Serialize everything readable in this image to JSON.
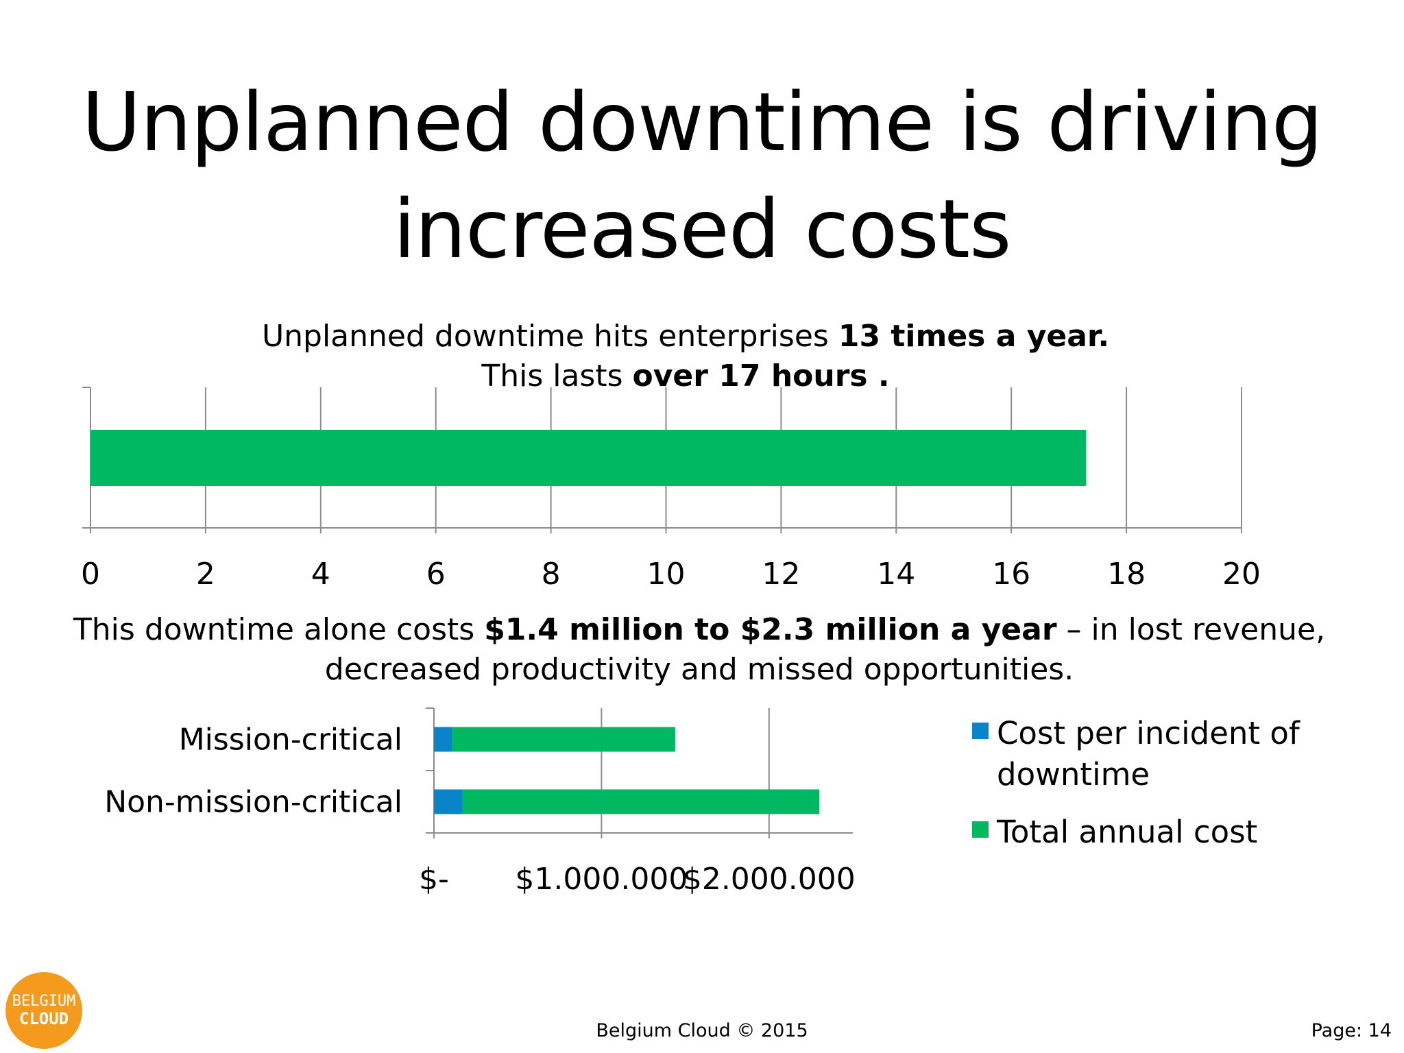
{
  "title": {
    "line1": "Unplanned downtime is driving",
    "line2": "increased costs"
  },
  "caption1": {
    "line1_plain": "Unplanned downtime hits enterprises ",
    "line1_bold": "13 times a year.",
    "line2_plain": "This lasts ",
    "line2_bold": "over 17 hours ."
  },
  "caption2": {
    "plain1": "This downtime alone costs ",
    "bold": "$1.4 million to $2.3 million a year",
    "plain2": " – in lost revenue, decreased productivity and missed opportunities."
  },
  "legend": {
    "item1": "Cost per incident of downtime",
    "item2": "Total annual cost"
  },
  "colors": {
    "green": "#00b862",
    "blue": "#0a84c9",
    "grid": "#8c8c8c",
    "logo": "#f49a1c"
  },
  "logo": {
    "line1": "BELGIUM",
    "line2": "CLOUD"
  },
  "footer": {
    "copyright": "Belgium Cloud © 2015",
    "page": "Page: 14"
  },
  "chart_data": [
    {
      "type": "bar",
      "orientation": "horizontal",
      "categories": [
        ""
      ],
      "values": [
        17.3
      ],
      "xlim": [
        0,
        20
      ],
      "xticks": [
        0,
        2,
        4,
        6,
        8,
        10,
        12,
        14,
        16,
        18,
        20
      ],
      "xtick_labels": [
        "0",
        "2",
        "4",
        "6",
        "8",
        "10",
        "12",
        "14",
        "16",
        "18",
        "20"
      ],
      "grid": true
    },
    {
      "type": "bar",
      "orientation": "horizontal",
      "stacked": true,
      "categories": [
        "Mission-critical",
        "Non-mission-critical"
      ],
      "series": [
        {
          "name": "Cost per incident of downtime",
          "values": [
            110000,
            170000
          ]
        },
        {
          "name": "Total annual cost",
          "values": [
            1330000,
            2130000
          ]
        }
      ],
      "xlim": [
        0,
        2500000
      ],
      "xticks": [
        0,
        1000000,
        2000000
      ],
      "xtick_labels": [
        "$-",
        "$1.000.000",
        "$2.000.000"
      ],
      "grid": true,
      "legend": "right"
    }
  ]
}
